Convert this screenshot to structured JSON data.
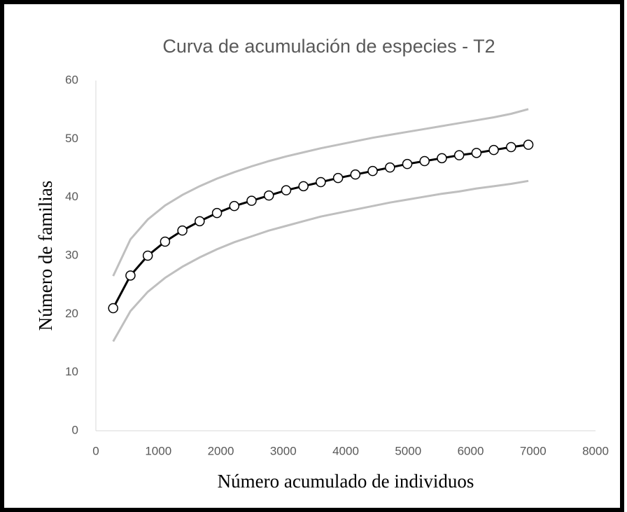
{
  "chart_data": {
    "type": "line",
    "title": "Curva de acumulación de especies - T2",
    "x_label": "Número acumulado de individuos",
    "y_label": "Número de familias",
    "x": [
      277,
      554,
      831,
      1108,
      1385,
      1662,
      1939,
      2216,
      2493,
      2770,
      3047,
      3324,
      3601,
      3878,
      4155,
      4432,
      4709,
      4986,
      5263,
      5540,
      5817,
      6094,
      6371,
      6648,
      6925
    ],
    "series": [
      {
        "color": "#bfbfbf",
        "values": [
          26.5,
          32.8,
          36.2,
          38.6,
          40.4,
          41.9,
          43.2,
          44.3,
          45.3,
          46.2,
          47.0,
          47.7,
          48.4,
          49.0,
          49.6,
          50.2,
          50.7,
          51.2,
          51.7,
          52.2,
          52.7,
          53.2,
          53.7,
          54.3,
          55.1
        ]
      },
      {
        "color": "#bfbfbf",
        "values": [
          15.3,
          20.5,
          23.8,
          26.2,
          28.1,
          29.7,
          31.1,
          32.3,
          33.3,
          34.3,
          35.1,
          35.9,
          36.7,
          37.3,
          37.9,
          38.5,
          39.1,
          39.6,
          40.1,
          40.6,
          41.0,
          41.5,
          41.9,
          42.3,
          42.8
        ]
      },
      {
        "color": "#000000",
        "markers": true,
        "values": [
          21,
          26.6,
          30,
          32.4,
          34.3,
          35.9,
          37.3,
          38.5,
          39.4,
          40.3,
          41.2,
          41.9,
          42.6,
          43.3,
          43.9,
          44.5,
          45.1,
          45.7,
          46.2,
          46.7,
          47.2,
          47.6,
          48.1,
          48.6,
          49
        ]
      }
    ],
    "xlim": [
      0,
      8000
    ],
    "xticks": [
      0,
      1000,
      2000,
      3000,
      4000,
      5000,
      6000,
      7000,
      8000
    ],
    "ylim": [
      0,
      60
    ],
    "yticks": [
      0,
      10,
      20,
      30,
      40,
      50,
      60
    ]
  }
}
